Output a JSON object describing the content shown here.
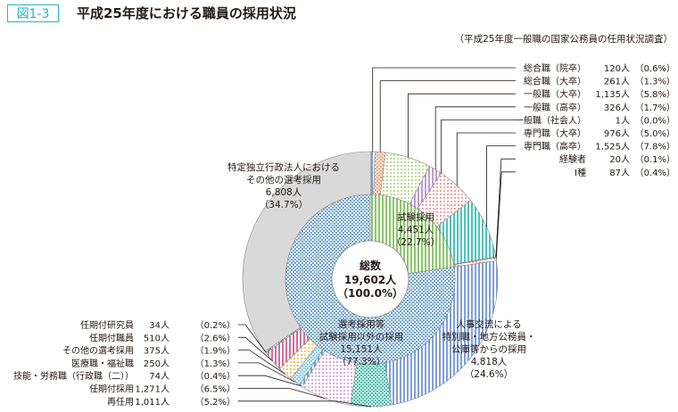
{
  "header": {
    "figure_tag": "図1-3",
    "title": "平成25年度における職員の採用状況",
    "source": "（平成25年度一般職の国家公務員の任用状況調査）"
  },
  "chart_data": {
    "type": "pie",
    "subtype": "double-donut",
    "center": {
      "label": "総数",
      "count": "19,602人",
      "percent": "（100.0%）"
    },
    "inner_ring": [
      {
        "label": "試験採用",
        "count": "4,451人",
        "percent": "（22.7%）",
        "value": 22.7,
        "color": "#8cc66a"
      },
      {
        "label_lines": [
          "選考採用等",
          "試験採用以外の採用"
        ],
        "count": "15,151人",
        "percent": "（77.3%）",
        "value": 77.3,
        "color": "#6fa3d0"
      }
    ],
    "outer_ring": [
      {
        "label": "総合職（院卒）",
        "count": "120人",
        "percent": "（0.6%）",
        "value": 0.6,
        "color": "#6fa3d0",
        "side": "right"
      },
      {
        "label": "総合職（大卒）",
        "count": "261人",
        "percent": "（1.3%）",
        "value": 1.3,
        "color": "#f0a070",
        "side": "right"
      },
      {
        "label": "一般職（大卒）",
        "count": "1,135人",
        "percent": "（5.8%）",
        "value": 5.8,
        "color": "#a8d070",
        "side": "right"
      },
      {
        "label": "一般職（高卒）",
        "count": "326人",
        "percent": "（1.7%）",
        "value": 1.7,
        "color": "#c49ad6",
        "side": "right"
      },
      {
        "label": "一般職（社会人）",
        "count": "1人",
        "percent": "（0.0%）",
        "value": 0.0,
        "color": "#888888",
        "side": "right"
      },
      {
        "label": "専門職（大卒）",
        "count": "976人",
        "percent": "（5.0%）",
        "value": 5.0,
        "color": "#f08a8a",
        "side": "right"
      },
      {
        "label": "専門職（高卒）",
        "count": "1,525人",
        "percent": "（7.8%）",
        "value": 7.8,
        "color": "#4cc4c0",
        "side": "right"
      },
      {
        "label": "経験者",
        "count": "20人",
        "percent": "（0.1%）",
        "value": 0.1,
        "color": "#888888",
        "side": "right"
      },
      {
        "label": "Ⅰ種",
        "count": "87人",
        "percent": "（0.4%）",
        "value": 0.4,
        "color": "#e09060",
        "side": "right"
      },
      {
        "label_lines": [
          "人事交流による",
          "特別職・地方公務員・",
          "公庫等からの採用"
        ],
        "count": "4,818人",
        "percent": "（24.6%）",
        "value": 24.6,
        "color": "#7fa0d8",
        "side": "inline"
      },
      {
        "label": "再任用",
        "count": "1,011人",
        "percent": "（5.2%）",
        "value": 5.2,
        "color": "#3cbfa8",
        "side": "left"
      },
      {
        "label": "任期付採用",
        "count": "1,271人",
        "percent": "（6.5%）",
        "value": 6.5,
        "color": "#c49ad6",
        "side": "left"
      },
      {
        "label": "技能・労務職（行政職（二））",
        "count": "74人",
        "percent": "（0.4%）",
        "value": 0.4,
        "color": "#6fa3d0",
        "side": "left"
      },
      {
        "label": "医療職・福祉職",
        "count": "250人",
        "percent": "（1.3%）",
        "value": 1.3,
        "color": "#7fcaf0",
        "side": "left"
      },
      {
        "label": "その他の選考採用",
        "count": "375人",
        "percent": "（1.9%）",
        "value": 1.9,
        "color": "#f5b040",
        "side": "left"
      },
      {
        "label": "任期付職員",
        "count": "510人",
        "percent": "（2.6%）",
        "value": 2.6,
        "color": "#d070a0",
        "side": "left"
      },
      {
        "label": "任期付研究員",
        "count": "34人",
        "percent": "（0.2%）",
        "value": 0.2,
        "color": "#888888",
        "side": "left"
      },
      {
        "label_lines": [
          "特定独立行政法人における",
          "その他の選考採用"
        ],
        "count": "6,808人",
        "percent": "（34.7%）",
        "value": 34.7,
        "color": "#d9d9d9",
        "side": "inline"
      }
    ]
  }
}
